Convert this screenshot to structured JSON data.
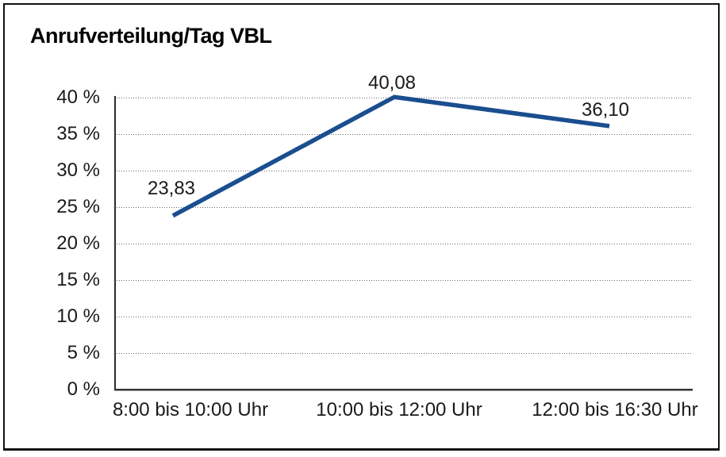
{
  "chart_data": {
    "type": "line",
    "title": "Anrufverteilung/Tag VBL",
    "categories": [
      "8:00 bis 10:00 Uhr",
      "10:00 bis 12:00 Uhr",
      "12:00 bis 16:30 Uhr"
    ],
    "series": [
      {
        "values": [
          23.83,
          40.08,
          36.1
        ]
      }
    ],
    "value_labels": [
      "23,83",
      "40,08",
      "36,10"
    ],
    "xlabel": "",
    "ylabel": "",
    "ylim": [
      0,
      40
    ],
    "y_tick_step": 5,
    "y_tick_labels": [
      "0 %",
      "5 %",
      "10 %",
      "15 %",
      "20 %",
      "25 %",
      "30 %",
      "35 %",
      "40 %"
    ],
    "grid": "horizontal-dotted",
    "legend": "none",
    "colors": {
      "line": "#1a4e8f",
      "text": "#1a1a1a",
      "grid": "#6b6b6b",
      "background": "#ffffff",
      "frame_border": "#111111"
    }
  }
}
